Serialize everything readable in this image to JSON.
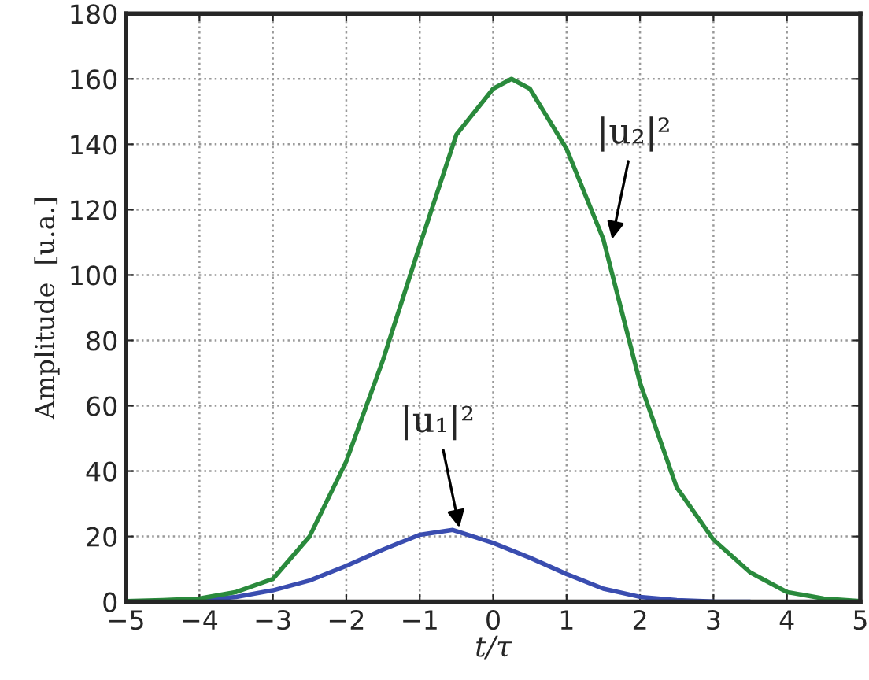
{
  "chart_data": {
    "type": "line",
    "xlabel": "t/τ",
    "ylabel": "Amplitude  [u.a.]",
    "xlim": [
      -5,
      5
    ],
    "ylim": [
      0,
      180
    ],
    "xticks": [
      {
        "value": -5,
        "label": "−5"
      },
      {
        "value": -4,
        "label": "−4"
      },
      {
        "value": -3,
        "label": "−3"
      },
      {
        "value": -2,
        "label": "−2"
      },
      {
        "value": -1,
        "label": "−1"
      },
      0,
      1,
      2,
      3,
      4,
      5
    ],
    "yticks": [
      0,
      20,
      40,
      60,
      80,
      100,
      120,
      140,
      160,
      180
    ],
    "grid": true,
    "line_style": "solid",
    "marker": "none",
    "series": [
      {
        "color": "#3a4db0",
        "x": [
          -5,
          -4.5,
          -4,
          -3.5,
          -3,
          -2.5,
          -2,
          -1.5,
          -1,
          -0.55,
          0,
          0.5,
          1,
          1.5,
          2,
          2.5,
          3,
          3.5
        ],
        "values": [
          0,
          0.2,
          0.5,
          1.5,
          3.5,
          6.5,
          11,
          16,
          20.5,
          22,
          18,
          13.5,
          8.5,
          4,
          1.5,
          0.5,
          0.1,
          0
        ]
      },
      {
        "color": "#2a8a3c",
        "x": [
          -5,
          -4.5,
          -4,
          -3.5,
          -3,
          -2.5,
          -2,
          -1.5,
          -1,
          -0.5,
          0,
          0.25,
          0.5,
          1,
          1.5,
          2,
          2.5,
          3,
          3.5,
          4,
          4.5,
          5
        ],
        "values": [
          0.2,
          0.5,
          1,
          3,
          7,
          20,
          43,
          74,
          109,
          143,
          157,
          160,
          157,
          138.6,
          111,
          67,
          35,
          19,
          9,
          3,
          1,
          0.2
        ]
      }
    ],
    "annotations": [
      {
        "text": "|u₂|²",
        "x": 1.62,
        "y": 111
      },
      {
        "text": "|u₁|²",
        "x": -0.46,
        "y": 22.7
      }
    ]
  }
}
